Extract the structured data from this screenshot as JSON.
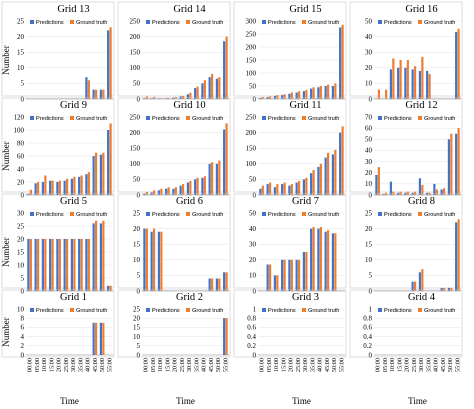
{
  "figure": {
    "ylabel": "Number",
    "xlabel": "Time",
    "legend": [
      "Predictions",
      "Ground truth"
    ],
    "colors": {
      "Predictions": "#4472c4",
      "Ground truth": "#ed7d31"
    }
  },
  "chart_data": [
    {
      "type": "bar",
      "title": "Grid 13",
      "categories": [
        "00:00",
        "05:00",
        "10:00",
        "15:00",
        "20:00",
        "25:00",
        "30:00",
        "35:00",
        "40:00",
        "45:00",
        "50:00",
        "55:00"
      ],
      "ylim": [
        0,
        25
      ],
      "yticks": [
        0,
        5,
        10,
        15,
        20,
        25
      ],
      "legend": "top-left",
      "series": [
        {
          "name": "Predictions",
          "values": [
            0,
            0,
            0,
            0,
            0,
            0,
            0,
            0,
            7,
            3,
            3,
            22
          ]
        },
        {
          "name": "Ground truth",
          "values": [
            0,
            0,
            0,
            0,
            0,
            0,
            0,
            0,
            6,
            3,
            3,
            23
          ]
        }
      ]
    },
    {
      "type": "bar",
      "title": "Grid 14",
      "categories": [
        "00:00",
        "05:00",
        "10:00",
        "15:00",
        "20:00",
        "25:00",
        "30:00",
        "35:00",
        "40:00",
        "45:00",
        "50:00",
        "55:00"
      ],
      "ylim": [
        0,
        250
      ],
      "yticks": [
        0,
        50,
        100,
        150,
        200,
        250
      ],
      "legend": "top-left",
      "series": [
        {
          "name": "Predictions",
          "values": [
            2,
            2,
            1,
            2,
            5,
            8,
            15,
            35,
            50,
            70,
            65,
            185
          ]
        },
        {
          "name": "Ground truth",
          "values": [
            8,
            7,
            2,
            3,
            6,
            10,
            20,
            40,
            60,
            80,
            70,
            200
          ]
        }
      ]
    },
    {
      "type": "bar",
      "title": "Grid 15",
      "categories": [
        "00:00",
        "05:00",
        "10:00",
        "15:00",
        "20:00",
        "25:00",
        "30:00",
        "35:00",
        "40:00",
        "45:00",
        "50:00",
        "55:00"
      ],
      "ylim": [
        0,
        300
      ],
      "yticks": [
        0,
        50,
        100,
        150,
        200,
        250,
        300
      ],
      "legend": "top-left",
      "series": [
        {
          "name": "Predictions",
          "values": [
            5,
            8,
            12,
            15,
            20,
            25,
            30,
            40,
            45,
            50,
            50,
            275
          ]
        },
        {
          "name": "Ground truth",
          "values": [
            8,
            10,
            15,
            18,
            25,
            30,
            35,
            45,
            50,
            55,
            60,
            285
          ]
        }
      ]
    },
    {
      "type": "bar",
      "title": "Grid 16",
      "categories": [
        "00:00",
        "05:00",
        "10:00",
        "15:00",
        "20:00",
        "25:00",
        "30:00",
        "35:00",
        "40:00",
        "45:00",
        "50:00",
        "55:00"
      ],
      "ylim": [
        0,
        50
      ],
      "yticks": [
        0,
        10,
        20,
        30,
        40,
        50
      ],
      "legend": "top-left",
      "series": [
        {
          "name": "Predictions",
          "values": [
            0,
            0,
            19,
            20,
            20,
            19,
            18,
            18,
            0,
            0,
            0,
            43
          ]
        },
        {
          "name": "Ground truth",
          "values": [
            6,
            6,
            26,
            25,
            25,
            21,
            27,
            16,
            0,
            0,
            0,
            45
          ]
        }
      ]
    },
    {
      "type": "bar",
      "title": "Grid 9",
      "categories": [
        "00:00",
        "05:00",
        "10:00",
        "15:00",
        "20:00",
        "25:00",
        "30:00",
        "35:00",
        "40:00",
        "45:00",
        "50:00",
        "55:00"
      ],
      "ylim": [
        0,
        120
      ],
      "yticks": [
        0,
        20,
        40,
        60,
        80,
        100,
        120
      ],
      "legend": "top-left",
      "series": [
        {
          "name": "Predictions",
          "values": [
            2,
            18,
            20,
            22,
            20,
            22,
            25,
            28,
            32,
            60,
            62,
            100
          ]
        },
        {
          "name": "Ground truth",
          "values": [
            8,
            20,
            30,
            22,
            22,
            25,
            28,
            30,
            35,
            65,
            65,
            110
          ]
        }
      ]
    },
    {
      "type": "bar",
      "title": "Grid 10",
      "categories": [
        "00:00",
        "05:00",
        "10:00",
        "15:00",
        "20:00",
        "25:00",
        "30:00",
        "35:00",
        "40:00",
        "45:00",
        "50:00",
        "55:00"
      ],
      "ylim": [
        0,
        250
      ],
      "yticks": [
        0,
        50,
        100,
        150,
        200,
        250
      ],
      "legend": "top-left",
      "series": [
        {
          "name": "Predictions",
          "values": [
            5,
            8,
            15,
            20,
            20,
            30,
            40,
            50,
            55,
            100,
            100,
            210
          ]
        },
        {
          "name": "Ground truth",
          "values": [
            10,
            15,
            20,
            25,
            25,
            35,
            45,
            55,
            60,
            105,
            110,
            230
          ]
        }
      ]
    },
    {
      "type": "bar",
      "title": "Grid 11",
      "categories": [
        "00:00",
        "05:00",
        "10:00",
        "15:00",
        "20:00",
        "25:00",
        "30:00",
        "35:00",
        "40:00",
        "45:00",
        "50:00",
        "55:00"
      ],
      "ylim": [
        0,
        250
      ],
      "yticks": [
        0,
        50,
        100,
        150,
        200,
        250
      ],
      "legend": "top-left",
      "series": [
        {
          "name": "Predictions",
          "values": [
            20,
            35,
            25,
            35,
            30,
            40,
            50,
            70,
            90,
            120,
            130,
            200
          ]
        },
        {
          "name": "Ground truth",
          "values": [
            30,
            40,
            35,
            40,
            35,
            45,
            55,
            80,
            100,
            135,
            145,
            220
          ]
        }
      ]
    },
    {
      "type": "bar",
      "title": "Grid 12",
      "categories": [
        "00:00",
        "05:00",
        "10:00",
        "15:00",
        "20:00",
        "25:00",
        "30:00",
        "35:00",
        "40:00",
        "45:00",
        "50:00",
        "55:00"
      ],
      "ylim": [
        0,
        70
      ],
      "yticks": [
        0,
        10,
        20,
        30,
        40,
        50,
        60,
        70
      ],
      "legend": "top-left",
      "series": [
        {
          "name": "Predictions",
          "values": [
            18,
            1,
            12,
            2,
            2,
            2,
            15,
            2,
            10,
            5,
            50,
            55
          ]
        },
        {
          "name": "Ground truth",
          "values": [
            25,
            2,
            3,
            3,
            3,
            3,
            9,
            2,
            5,
            6,
            55,
            60
          ]
        }
      ]
    },
    {
      "type": "bar",
      "title": "Grid 5",
      "categories": [
        "00:00",
        "05:00",
        "10:00",
        "15:00",
        "20:00",
        "25:00",
        "30:00",
        "35:00",
        "40:00",
        "45:00",
        "50:00",
        "55:00"
      ],
      "ylim": [
        0,
        30
      ],
      "yticks": [
        0,
        5,
        10,
        15,
        20,
        25,
        30
      ],
      "legend": "top-left",
      "series": [
        {
          "name": "Predictions",
          "values": [
            20,
            20,
            20,
            20,
            20,
            20,
            20,
            20,
            20,
            26,
            26,
            2
          ]
        },
        {
          "name": "Ground truth",
          "values": [
            20,
            20,
            20,
            20,
            20,
            20,
            20,
            20,
            20,
            27,
            27,
            2
          ]
        }
      ]
    },
    {
      "type": "bar",
      "title": "Grid 6",
      "categories": [
        "00:00",
        "05:00",
        "10:00",
        "15:00",
        "20:00",
        "25:00",
        "30:00",
        "35:00",
        "40:00",
        "45:00",
        "50:00",
        "55:00"
      ],
      "ylim": [
        0,
        25
      ],
      "yticks": [
        0,
        5,
        10,
        15,
        20,
        25
      ],
      "legend": "top-left",
      "series": [
        {
          "name": "Predictions",
          "values": [
            20,
            19,
            19,
            0,
            0,
            0,
            0,
            0,
            0,
            4,
            4,
            6
          ]
        },
        {
          "name": "Ground truth",
          "values": [
            20,
            20,
            19,
            0,
            0,
            0,
            0,
            0,
            0,
            4,
            4,
            6
          ]
        }
      ]
    },
    {
      "type": "bar",
      "title": "Grid 7",
      "categories": [
        "00:00",
        "05:00",
        "10:00",
        "15:00",
        "20:00",
        "25:00",
        "30:00",
        "35:00",
        "40:00",
        "45:00",
        "50:00",
        "55:00"
      ],
      "ylim": [
        0,
        50
      ],
      "yticks": [
        0,
        10,
        20,
        30,
        40,
        50
      ],
      "legend": "top-left",
      "series": [
        {
          "name": "Predictions",
          "values": [
            0,
            17,
            10,
            20,
            20,
            20,
            25,
            40,
            40,
            38,
            37,
            0
          ]
        },
        {
          "name": "Ground truth",
          "values": [
            0,
            17,
            10,
            20,
            20,
            20,
            25,
            41,
            41,
            39,
            37,
            0
          ]
        }
      ]
    },
    {
      "type": "bar",
      "title": "Grid 8",
      "categories": [
        "00:00",
        "05:00",
        "10:00",
        "15:00",
        "20:00",
        "25:00",
        "30:00",
        "35:00",
        "40:00",
        "45:00",
        "50:00",
        "55:00"
      ],
      "ylim": [
        0,
        25
      ],
      "yticks": [
        0,
        5,
        10,
        15,
        20,
        25
      ],
      "legend": "top-left",
      "series": [
        {
          "name": "Predictions",
          "values": [
            0,
            0,
            0,
            0,
            0,
            3,
            6,
            0,
            0,
            1,
            1,
            22
          ]
        },
        {
          "name": "Ground truth",
          "values": [
            0,
            0,
            0,
            0,
            0,
            3,
            7,
            0,
            0,
            1,
            1,
            23
          ]
        }
      ]
    },
    {
      "type": "bar",
      "title": "Grid 1",
      "categories": [
        "00:00",
        "05:00",
        "10:00",
        "15:00",
        "20:00",
        "25:00",
        "30:00",
        "35:00",
        "40:00",
        "45:00",
        "50:00",
        "55:00"
      ],
      "ylim": [
        0,
        10
      ],
      "yticks": [
        0,
        2,
        4,
        6,
        8,
        10
      ],
      "legend": "top-left",
      "series": [
        {
          "name": "Predictions",
          "values": [
            0,
            0,
            0,
            0,
            0,
            0,
            0,
            0,
            0,
            7,
            7,
            0
          ]
        },
        {
          "name": "Ground truth",
          "values": [
            0,
            0,
            0,
            0,
            0,
            0,
            0,
            0,
            0,
            7,
            7,
            0
          ]
        }
      ]
    },
    {
      "type": "bar",
      "title": "Grid 2",
      "categories": [
        "00:00",
        "05:00",
        "10:00",
        "15:00",
        "20:00",
        "25:00",
        "30:00",
        "35:00",
        "40:00",
        "45:00",
        "50:00",
        "55:00"
      ],
      "ylim": [
        0,
        25
      ],
      "yticks": [
        0,
        5,
        10,
        15,
        20,
        25
      ],
      "legend": "top-left",
      "series": [
        {
          "name": "Predictions",
          "values": [
            0,
            0,
            0,
            0,
            0,
            0,
            0,
            0,
            0,
            0,
            0,
            20
          ]
        },
        {
          "name": "Ground truth",
          "values": [
            0,
            0,
            0,
            0,
            0,
            0,
            0,
            0,
            0,
            0,
            0,
            20
          ]
        }
      ]
    },
    {
      "type": "bar",
      "title": "Grid 3",
      "categories": [
        "00:00",
        "05:00",
        "10:00",
        "15:00",
        "20:00",
        "25:00",
        "30:00",
        "35:00",
        "40:00",
        "45:00",
        "50:00",
        "55:00"
      ],
      "ylim": [
        0,
        1
      ],
      "yticks": [
        0,
        0.2,
        0.4,
        0.6,
        0.8,
        1
      ],
      "legend": "top-left",
      "series": [
        {
          "name": "Predictions",
          "values": [
            0,
            0,
            0,
            0,
            0,
            0,
            0,
            0,
            0,
            0,
            0,
            0
          ]
        },
        {
          "name": "Ground truth",
          "values": [
            0,
            0,
            0,
            0,
            0,
            0,
            0,
            0,
            0,
            0,
            0,
            0
          ]
        }
      ]
    },
    {
      "type": "bar",
      "title": "Grid 4",
      "categories": [
        "00:00",
        "05:00",
        "10:00",
        "15:00",
        "20:00",
        "25:00",
        "30:00",
        "35:00",
        "40:00",
        "45:00",
        "50:00",
        "55:00"
      ],
      "ylim": [
        0,
        1
      ],
      "yticks": [
        0,
        0.2,
        0.4,
        0.6,
        0.8,
        1
      ],
      "legend": "top-left",
      "series": [
        {
          "name": "Predictions",
          "values": [
            0,
            0,
            0,
            0,
            0,
            0,
            0,
            0,
            0,
            0,
            0,
            0
          ]
        },
        {
          "name": "Ground truth",
          "values": [
            0,
            0,
            0,
            0,
            0,
            0,
            0,
            0,
            0,
            0,
            0,
            0
          ]
        }
      ]
    }
  ]
}
